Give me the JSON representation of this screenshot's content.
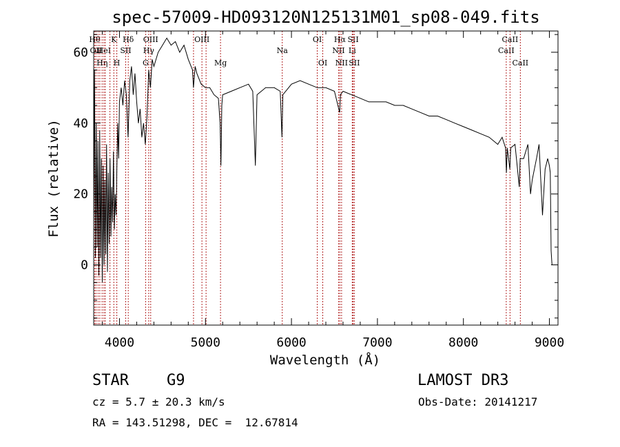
{
  "chart_data": {
    "type": "line",
    "title": "spec-57009-HD093120N125131M01_sp08-049.fits",
    "xlabel": "Wavelength (Å)",
    "ylabel": "Flux (relative)",
    "xlim": [
      3700,
      9100
    ],
    "ylim": [
      -17,
      66
    ],
    "xticks": [
      4000,
      5000,
      6000,
      7000,
      8000,
      9000
    ],
    "yticks": [
      0,
      20,
      40,
      60
    ],
    "grid": false,
    "line_color": "#000000",
    "marker_color": "#b22222",
    "series": [
      {
        "values": [
          [
            3700,
            10
          ],
          [
            3710,
            55
          ],
          [
            3720,
            2
          ],
          [
            3730,
            40
          ],
          [
            3740,
            5
          ],
          [
            3750,
            35
          ],
          [
            3760,
            -3
          ],
          [
            3770,
            38
          ],
          [
            3780,
            2
          ],
          [
            3790,
            30
          ],
          [
            3800,
            -5
          ],
          [
            3810,
            28
          ],
          [
            3820,
            0
          ],
          [
            3830,
            24
          ],
          [
            3840,
            3
          ],
          [
            3850,
            34
          ],
          [
            3860,
            -2
          ],
          [
            3870,
            26
          ],
          [
            3880,
            6
          ],
          [
            3890,
            30
          ],
          [
            3900,
            8
          ],
          [
            3910,
            22
          ],
          [
            3920,
            12
          ],
          [
            3930,
            32
          ],
          [
            3940,
            10
          ],
          [
            3950,
            20
          ],
          [
            3960,
            14
          ],
          [
            3970,
            28
          ],
          [
            3980,
            40
          ],
          [
            3990,
            30
          ],
          [
            4000,
            46
          ],
          [
            4020,
            50
          ],
          [
            4040,
            45
          ],
          [
            4060,
            52
          ],
          [
            4080,
            48
          ],
          [
            4100,
            36
          ],
          [
            4120,
            52
          ],
          [
            4140,
            56
          ],
          [
            4160,
            48
          ],
          [
            4180,
            54
          ],
          [
            4200,
            46
          ],
          [
            4220,
            40
          ],
          [
            4240,
            44
          ],
          [
            4260,
            36
          ],
          [
            4280,
            40
          ],
          [
            4300,
            34
          ],
          [
            4320,
            42
          ],
          [
            4340,
            55
          ],
          [
            4360,
            50
          ],
          [
            4380,
            58
          ],
          [
            4400,
            56
          ],
          [
            4450,
            60
          ],
          [
            4500,
            62
          ],
          [
            4550,
            64
          ],
          [
            4600,
            62
          ],
          [
            4650,
            63
          ],
          [
            4700,
            60
          ],
          [
            4750,
            62
          ],
          [
            4800,
            58
          ],
          [
            4850,
            55
          ],
          [
            4860,
            50
          ],
          [
            4880,
            56
          ],
          [
            4900,
            54
          ],
          [
            4950,
            51
          ],
          [
            5000,
            50
          ],
          [
            5050,
            50
          ],
          [
            5100,
            48
          ],
          [
            5150,
            47
          ],
          [
            5170,
            40
          ],
          [
            5180,
            28
          ],
          [
            5190,
            45
          ],
          [
            5200,
            48
          ],
          [
            5300,
            49
          ],
          [
            5400,
            50
          ],
          [
            5500,
            51
          ],
          [
            5550,
            49
          ],
          [
            5580,
            28
          ],
          [
            5600,
            48
          ],
          [
            5700,
            50
          ],
          [
            5800,
            50
          ],
          [
            5870,
            49
          ],
          [
            5890,
            36
          ],
          [
            5900,
            48
          ],
          [
            6000,
            51
          ],
          [
            6100,
            52
          ],
          [
            6200,
            51
          ],
          [
            6300,
            50
          ],
          [
            6400,
            50
          ],
          [
            6500,
            49
          ],
          [
            6560,
            43
          ],
          [
            6570,
            48
          ],
          [
            6600,
            49
          ],
          [
            6700,
            48
          ],
          [
            6800,
            47
          ],
          [
            6900,
            46
          ],
          [
            7000,
            46
          ],
          [
            7100,
            46
          ],
          [
            7200,
            45
          ],
          [
            7300,
            45
          ],
          [
            7400,
            44
          ],
          [
            7500,
            43
          ],
          [
            7600,
            42
          ],
          [
            7700,
            42
          ],
          [
            7800,
            41
          ],
          [
            7900,
            40
          ],
          [
            8000,
            39
          ],
          [
            8100,
            38
          ],
          [
            8200,
            37
          ],
          [
            8300,
            36
          ],
          [
            8400,
            34
          ],
          [
            8450,
            36
          ],
          [
            8490,
            33
          ],
          [
            8500,
            26
          ],
          [
            8510,
            33
          ],
          [
            8540,
            27
          ],
          [
            8550,
            33
          ],
          [
            8600,
            34
          ],
          [
            8650,
            22
          ],
          [
            8660,
            30
          ],
          [
            8700,
            30
          ],
          [
            8750,
            34
          ],
          [
            8780,
            20
          ],
          [
            8800,
            24
          ],
          [
            8850,
            30
          ],
          [
            8880,
            34
          ],
          [
            8900,
            24
          ],
          [
            8920,
            14
          ],
          [
            8950,
            27
          ],
          [
            8980,
            30
          ],
          [
            9000,
            28
          ],
          [
            9010,
            26
          ],
          [
            9020,
            4
          ],
          [
            9030,
            0
          ]
        ]
      }
    ],
    "line_markers": [
      {
        "x": 3712,
        "label": "Hθ",
        "row": 1,
        "align": "middle"
      },
      {
        "x": 3727,
        "label": "OII",
        "row": 2,
        "align": "middle"
      },
      {
        "x": 3750,
        "label": "",
        "row": 0,
        "align": "middle"
      },
      {
        "x": 3771,
        "label": "",
        "row": 0,
        "align": "middle"
      },
      {
        "x": 3798,
        "label": "Hη",
        "row": 3,
        "align": "middle"
      },
      {
        "x": 3819,
        "label": "HeI",
        "row": 2,
        "align": "middle"
      },
      {
        "x": 3835,
        "label": "",
        "row": 0,
        "align": "middle"
      },
      {
        "x": 3889,
        "label": "",
        "row": 0,
        "align": "middle"
      },
      {
        "x": 3934,
        "label": "K",
        "row": 1,
        "align": "middle"
      },
      {
        "x": 3969,
        "label": "H",
        "row": 3,
        "align": "middle"
      },
      {
        "x": 4072,
        "label": "SII",
        "row": 2,
        "align": "middle"
      },
      {
        "x": 4102,
        "label": "Hδ",
        "row": 1,
        "align": "middle"
      },
      {
        "x": 4304,
        "label": "G",
        "row": 3,
        "align": "middle"
      },
      {
        "x": 4340,
        "label": "Hγ",
        "row": 2,
        "align": "middle"
      },
      {
        "x": 4363,
        "label": "OIII",
        "row": 1,
        "align": "middle"
      },
      {
        "x": 4861,
        "label": "",
        "row": 0,
        "align": "middle"
      },
      {
        "x": 4959,
        "label": "OIII",
        "row": 1,
        "align": "middle"
      },
      {
        "x": 5007,
        "label": "",
        "row": 0,
        "align": "middle"
      },
      {
        "x": 5175,
        "label": "Mg",
        "row": 3,
        "align": "middle"
      },
      {
        "x": 5893,
        "label": "Na",
        "row": 2,
        "align": "middle"
      },
      {
        "x": 6300,
        "label": "OI",
        "row": 1,
        "align": "middle"
      },
      {
        "x": 6364,
        "label": "OI",
        "row": 3,
        "align": "middle"
      },
      {
        "x": 6548,
        "label": "NII",
        "row": 2,
        "align": "middle"
      },
      {
        "x": 6563,
        "label": "Hα",
        "row": 1,
        "align": "middle"
      },
      {
        "x": 6583,
        "label": "NII",
        "row": 3,
        "align": "middle"
      },
      {
        "x": 6707,
        "label": "Li",
        "row": 2,
        "align": "middle"
      },
      {
        "x": 6717,
        "label": "SII",
        "row": 1,
        "align": "middle"
      },
      {
        "x": 6731,
        "label": "SII",
        "row": 3,
        "align": "middle"
      },
      {
        "x": 8498,
        "label": "CaII",
        "row": 2,
        "align": "middle"
      },
      {
        "x": 8542,
        "label": "CaII",
        "row": 1,
        "align": "middle"
      },
      {
        "x": 8662,
        "label": "CaII",
        "row": 3,
        "align": "middle"
      }
    ]
  },
  "info": {
    "object_class": "STAR",
    "subclass": "G9",
    "survey": "LAMOST DR3",
    "redshift": "cz = 5.7 ± 20.3 km/s",
    "obs_date": "Obs-Date: 20141217",
    "coords": "RA = 143.51298, DEC =  12.67814"
  }
}
